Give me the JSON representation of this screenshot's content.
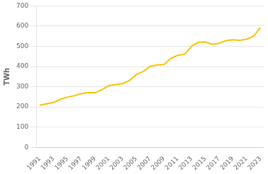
{
  "chart_data": {
    "type": "line",
    "ylabel": "TWh",
    "x": [
      1991,
      1992,
      1993,
      1994,
      1995,
      1996,
      1997,
      1998,
      1999,
      2000,
      2001,
      2002,
      2003,
      2004,
      2005,
      2006,
      2007,
      2008,
      2009,
      2010,
      2011,
      2012,
      2013,
      2014,
      2015,
      2016,
      2017,
      2018,
      2019,
      2020,
      2021,
      2022,
      2023
    ],
    "values": [
      208,
      215,
      222,
      238,
      248,
      255,
      265,
      270,
      270,
      285,
      305,
      310,
      315,
      330,
      360,
      375,
      400,
      408,
      410,
      440,
      455,
      460,
      500,
      520,
      522,
      510,
      515,
      528,
      532,
      530,
      535,
      550,
      592
    ],
    "color": "#F5C400",
    "xlim": [
      1990.5,
      2023.5
    ],
    "xticks": [
      1991,
      1993,
      1995,
      1997,
      1999,
      2001,
      2003,
      2005,
      2007,
      2009,
      2011,
      2013,
      2015,
      2017,
      2019,
      2021,
      2023
    ],
    "ylim": [
      0,
      700
    ],
    "yticks": [
      0,
      100,
      200,
      300,
      400,
      500,
      600,
      700
    ],
    "grid": "y"
  }
}
